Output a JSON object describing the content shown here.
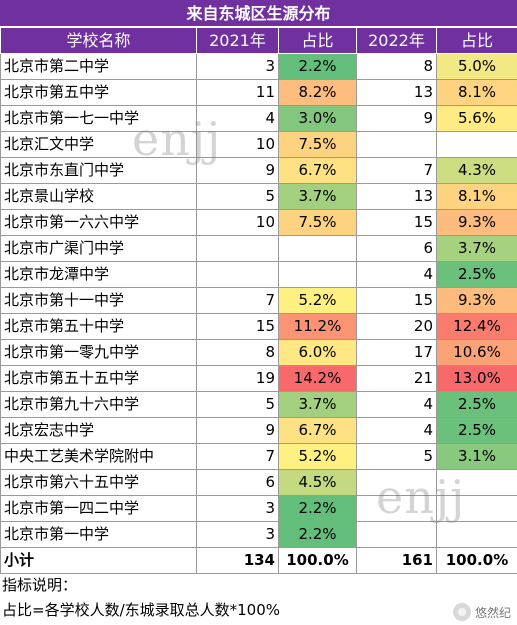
{
  "title": "来自东城区生源分布",
  "headers": [
    "学校名称",
    "2021年",
    "占比",
    "2022年",
    "占比"
  ],
  "rows": [
    {
      "name": "北京市第二中学",
      "n2021": "3",
      "p2021": "2.2%",
      "c2021": "#63be7b",
      "n2022": "8",
      "p2022": "5.0%",
      "c2022": "#f2e984"
    },
    {
      "name": "北京市第五中学",
      "n2021": "11",
      "p2021": "8.2%",
      "c2021": "#fdbd7e",
      "n2022": "13",
      "p2022": "8.1%",
      "c2022": "#fed481"
    },
    {
      "name": "北京市第一七一中学",
      "n2021": "4",
      "p2021": "3.0%",
      "c2021": "#82c77d",
      "n2022": "9",
      "p2022": "5.6%",
      "c2022": "#ffeb84"
    },
    {
      "name": "北京汇文中学",
      "n2021": "10",
      "p2021": "7.5%",
      "c2021": "#fed380",
      "n2022": "",
      "p2022": "",
      "c2022": ""
    },
    {
      "name": "北京市东直门中学",
      "n2021": "9",
      "p2021": "6.7%",
      "c2021": "#fee182",
      "n2022": "7",
      "p2022": "4.3%",
      "c2022": "#cbdc81"
    },
    {
      "name": "北京景山学校",
      "n2021": "5",
      "p2021": "3.7%",
      "c2021": "#a2d07f",
      "n2022": "13",
      "p2022": "8.1%",
      "c2022": "#fed481"
    },
    {
      "name": "北京市第一六六中学",
      "n2021": "10",
      "p2021": "7.5%",
      "c2021": "#fed380",
      "n2022": "15",
      "p2022": "9.3%",
      "c2022": "#fdbb7e"
    },
    {
      "name": "北京市广渠门中学",
      "n2021": "",
      "p2021": "",
      "c2021": "",
      "n2022": "6",
      "p2022": "3.7%",
      "c2022": "#a6d27f"
    },
    {
      "name": "北京市龙潭中学",
      "n2021": "",
      "p2021": "",
      "c2021": "",
      "n2022": "4",
      "p2022": "2.5%",
      "c2022": "#6bc07b"
    },
    {
      "name": "北京市第十一中学",
      "n2021": "7",
      "p2021": "5.2%",
      "c2021": "#fff082",
      "n2022": "15",
      "p2022": "9.3%",
      "c2022": "#fdbb7e"
    },
    {
      "name": "北京市第五十中学",
      "n2021": "15",
      "p2021": "11.2%",
      "c2021": "#fb9474",
      "n2022": "20",
      "p2022": "12.4%",
      "c2022": "#f97c6e"
    },
    {
      "name": "北京市第一零九中学",
      "n2021": "8",
      "p2021": "6.0%",
      "c2021": "#ffe883",
      "n2022": "17",
      "p2022": "10.6%",
      "c2022": "#fba276"
    },
    {
      "name": "北京市第五十五中学",
      "n2021": "19",
      "p2021": "14.2%",
      "c2021": "#f8696b",
      "n2022": "21",
      "p2022": "13.0%",
      "c2022": "#f8696b"
    },
    {
      "name": "北京市第九十六中学",
      "n2021": "5",
      "p2021": "3.7%",
      "c2021": "#a2d07f",
      "n2022": "4",
      "p2022": "2.5%",
      "c2022": "#6bc07b"
    },
    {
      "name": "北京宏志中学",
      "n2021": "9",
      "p2021": "6.7%",
      "c2021": "#fee182",
      "n2022": "4",
      "p2022": "2.5%",
      "c2022": "#6bc07b"
    },
    {
      "name": "中央工艺美术学院附中",
      "n2021": "7",
      "p2021": "5.2%",
      "c2021": "#fff082",
      "n2022": "5",
      "p2022": "3.1%",
      "c2022": "#89c97e"
    },
    {
      "name": "北京市第六十五中学",
      "n2021": "6",
      "p2021": "4.5%",
      "c2021": "#c4da81",
      "n2022": "",
      "p2022": "",
      "c2022": ""
    },
    {
      "name": "北京市第一四二中学",
      "n2021": "3",
      "p2021": "2.2%",
      "c2021": "#63be7b",
      "n2022": "",
      "p2022": "",
      "c2022": ""
    },
    {
      "name": "北京市第一中学",
      "n2021": "3",
      "p2021": "2.2%",
      "c2021": "#63be7b",
      "n2022": "",
      "p2022": "",
      "c2022": ""
    }
  ],
  "total": {
    "name": "小计",
    "n2021": "134",
    "p2021": "100.0%",
    "n2022": "161",
    "p2022": "100.0%"
  },
  "notes": [
    "指标说明：",
    "占比=各学校人数/东城录取总人数*100%"
  ],
  "watermark": "enjj",
  "logo_text": "悠然纪",
  "colors": {
    "header_bg": "#7030a0",
    "header_text": "#ffffff"
  }
}
